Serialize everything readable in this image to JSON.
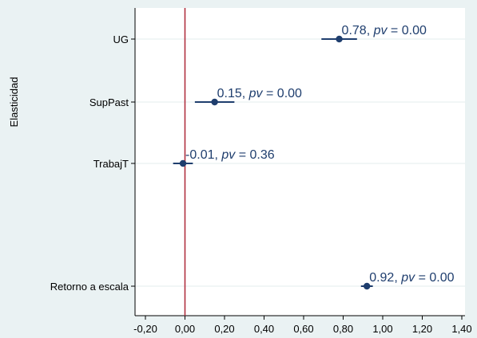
{
  "chart_data": {
    "type": "scatter",
    "subtype": "coefficient-plot",
    "ylabel": "Elasticidad",
    "xlabel": "",
    "xlim": [
      -0.2,
      1.4
    ],
    "xticks": [
      -0.2,
      0.0,
      0.2,
      0.4,
      0.6,
      0.8,
      1.0,
      1.2,
      1.4
    ],
    "xtick_labels": [
      "-0,20",
      "0,00",
      "0,20",
      "0,40",
      "0,60",
      "0,80",
      "1,00",
      "1,20",
      "1,40"
    ],
    "reference_line": {
      "x": 0.0,
      "color": "#b0303f"
    },
    "grid": true,
    "marker_color": "#1f3e6e",
    "points": [
      {
        "category": "UG",
        "estimate": 0.78,
        "ci_low": 0.69,
        "ci_high": 0.87,
        "pv_text": "0.00",
        "est_text": "0.78"
      },
      {
        "category": "SupPast",
        "estimate": 0.15,
        "ci_low": 0.05,
        "ci_high": 0.25,
        "pv_text": "0.00",
        "est_text": "0.15"
      },
      {
        "category": "TrabajT",
        "estimate": -0.01,
        "ci_low": -0.06,
        "ci_high": 0.04,
        "pv_text": "0.36",
        "est_text": "-0.01"
      },
      {
        "category": "Retorno a escala",
        "estimate": 0.92,
        "ci_low": 0.89,
        "ci_high": 0.95,
        "pv_text": "0.00",
        "est_text": "0.92"
      }
    ],
    "label_template": {
      "pv_word": "pv",
      "equals": " = ",
      "separator": ", "
    }
  }
}
